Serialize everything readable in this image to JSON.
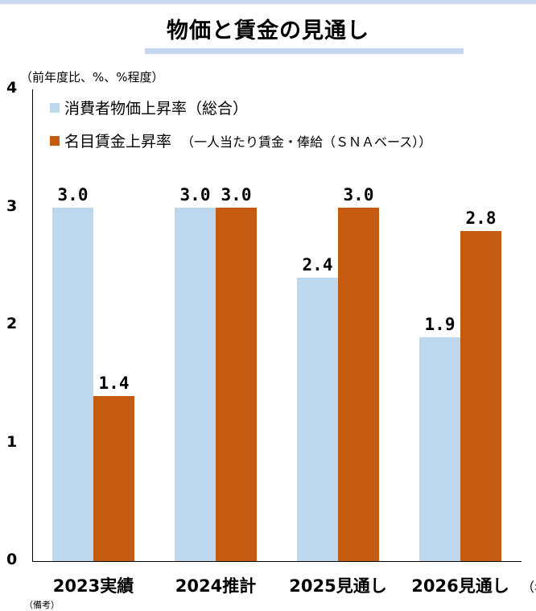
{
  "chart_data": {
    "type": "bar",
    "title": "物価と賃金の見通し",
    "ylabel": "（前年度比、%、%程度）",
    "xlabel": "（年",
    "categories": [
      "2023実績",
      "2024推計",
      "2025見通し",
      "2026見通し"
    ],
    "series": [
      {
        "name": "消費者物価上昇率（総合）",
        "color": "#bdd7ee",
        "values": [
          3.0,
          3.0,
          2.4,
          1.9
        ],
        "labels": [
          "3.0",
          "3.0",
          "2.4",
          "1.9"
        ]
      },
      {
        "name": "名目賃金上昇率",
        "note": "（一人当たり賃金・俸給（ＳＮＡベース））",
        "color": "#c55a11",
        "values": [
          1.4,
          3.0,
          3.0,
          2.8
        ],
        "labels": [
          "1.4",
          "3.0",
          "3.0",
          "2.8"
        ]
      }
    ],
    "ylim": [
      0,
      4
    ],
    "yticks": [
      "0",
      "1",
      "2",
      "3",
      "4"
    ],
    "grid": false,
    "legend": "top-left"
  },
  "notes_text": "（備考）"
}
